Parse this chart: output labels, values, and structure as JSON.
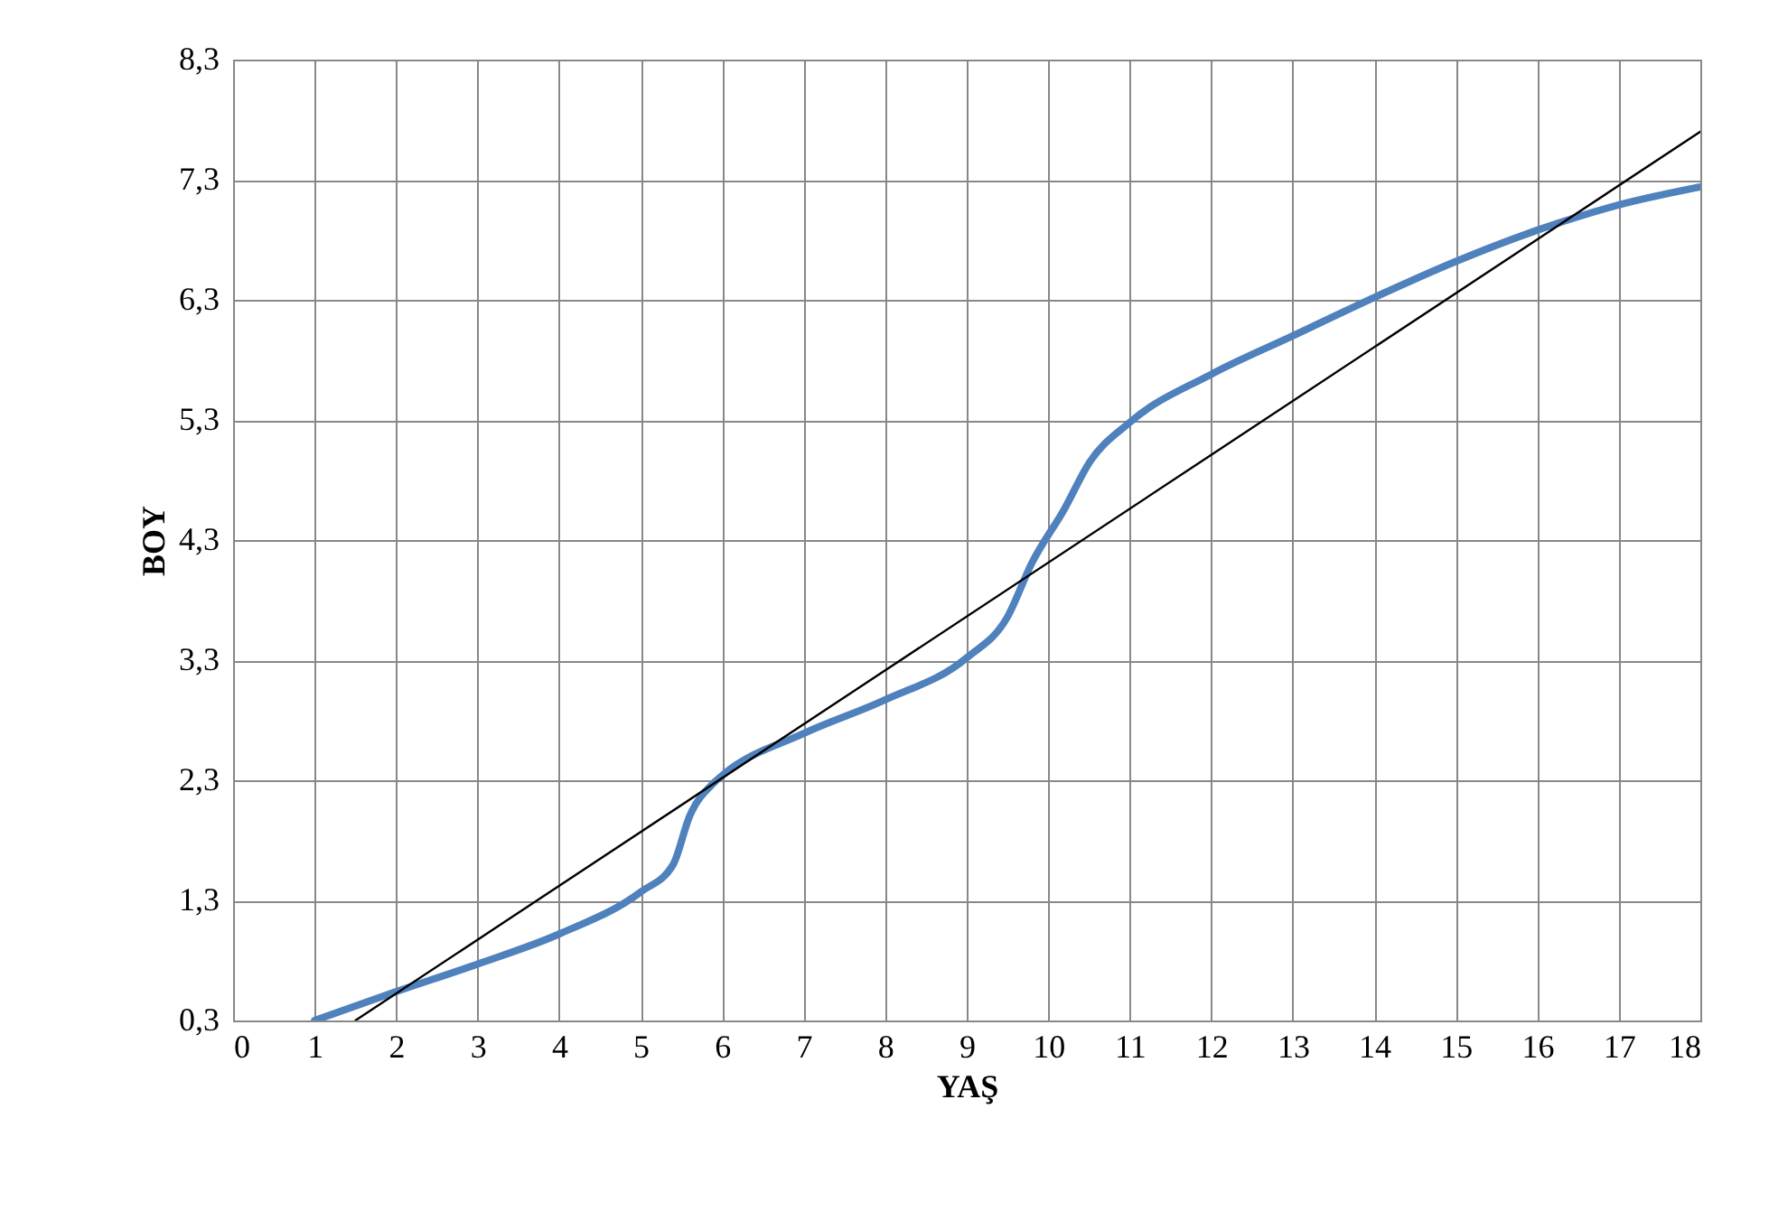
{
  "chart_data": {
    "type": "line",
    "xlabel": "YAŞ",
    "ylabel": "BOY",
    "xlim": [
      0,
      18
    ],
    "ylim": [
      0.3,
      8.3
    ],
    "xticks": [
      0,
      1,
      2,
      3,
      4,
      5,
      6,
      7,
      8,
      9,
      10,
      11,
      12,
      13,
      14,
      15,
      16,
      17,
      18
    ],
    "yticks": [
      {
        "value": 0.3,
        "label": "0,3"
      },
      {
        "value": 1.3,
        "label": "1,3"
      },
      {
        "value": 2.3,
        "label": "2,3"
      },
      {
        "value": 3.3,
        "label": "3,3"
      },
      {
        "value": 4.3,
        "label": "4,3"
      },
      {
        "value": 5.3,
        "label": "5,3"
      },
      {
        "value": 6.3,
        "label": "6,3"
      },
      {
        "value": 7.3,
        "label": "7,3"
      },
      {
        "value": 8.3,
        "label": "8,3"
      }
    ],
    "grid": true,
    "marker": "none",
    "line_style": "solid",
    "series": [
      {
        "color": "#4f81bd",
        "x": [
          1,
          2,
          3,
          4,
          5,
          5.4,
          5.6,
          5.9,
          6,
          7,
          8,
          9,
          9.5,
          9.8,
          10.2,
          10.5,
          11,
          12,
          13,
          14,
          15,
          16,
          17,
          18
        ],
        "values": [
          0.3,
          0.54,
          0.77,
          1.02,
          1.37,
          1.6,
          2.0,
          2.28,
          2.34,
          2.69,
          2.97,
          3.32,
          3.66,
          4.11,
          4.56,
          4.94,
          5.28,
          5.68,
          6.0,
          6.32,
          6.62,
          6.88,
          7.09,
          7.24
        ]
      },
      {
        "color": "#000000",
        "x": [
          1.5,
          18
        ],
        "values": [
          0.3,
          7.7
        ]
      }
    ]
  }
}
